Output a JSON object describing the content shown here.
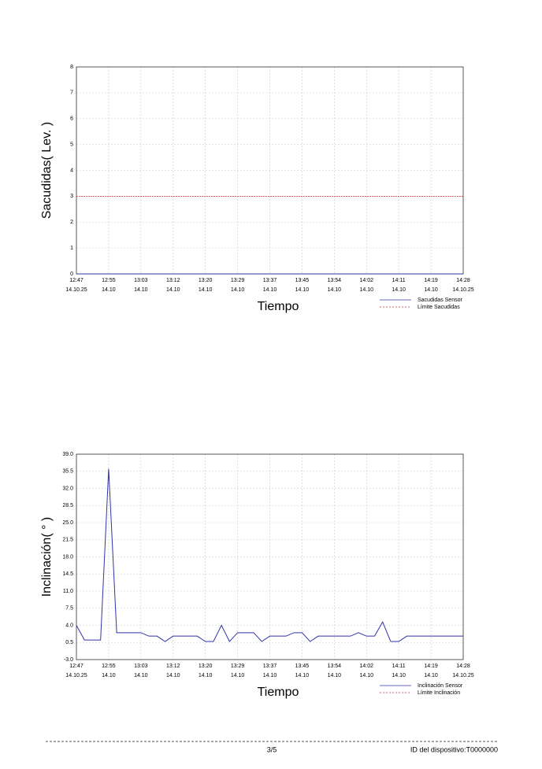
{
  "chart_data": [
    {
      "type": "line",
      "y_label": "Sacudidas( Lev. )",
      "x_label": "Tiempo",
      "ylim": [
        0,
        8
      ],
      "yticks": [
        0,
        1,
        2,
        3,
        4,
        5,
        6,
        7,
        8
      ],
      "xlim": [
        0,
        48
      ],
      "xticks": [
        {
          "value": 0,
          "label": [
            "12:47",
            "14.10.25"
          ]
        },
        {
          "value": 4,
          "label": [
            "12:55",
            "14.10"
          ]
        },
        {
          "value": 8,
          "label": [
            "13:03",
            "14.10"
          ]
        },
        {
          "value": 12,
          "label": [
            "13:12",
            "14.10"
          ]
        },
        {
          "value": 16,
          "label": [
            "13:20",
            "14.10"
          ]
        },
        {
          "value": 20,
          "label": [
            "13:29",
            "14.10"
          ]
        },
        {
          "value": 24,
          "label": [
            "13:37",
            "14.10"
          ]
        },
        {
          "value": 28,
          "label": [
            "13:45",
            "14.10"
          ]
        },
        {
          "value": 32,
          "label": [
            "13:54",
            "14.10"
          ]
        },
        {
          "value": 36,
          "label": [
            "14:02",
            "14.10"
          ]
        },
        {
          "value": 40,
          "label": [
            "14:11",
            "14.10"
          ]
        },
        {
          "value": 44,
          "label": [
            "14:19",
            "14.10"
          ]
        },
        {
          "value": 48,
          "label": [
            "14:28",
            "14.10.25"
          ]
        }
      ],
      "grid": true,
      "series": [
        {
          "name": "Sacudidas Sensor",
          "color": "#3333aa",
          "values": [
            0,
            0,
            0,
            0,
            0,
            0,
            0,
            0,
            0,
            0,
            0,
            0,
            0,
            0,
            0,
            0,
            0,
            0,
            0,
            0,
            0,
            0,
            0,
            0,
            0,
            0,
            0,
            0,
            0,
            0,
            0,
            0,
            0,
            0,
            0,
            0,
            0,
            0,
            0,
            0,
            0,
            0,
            0,
            0,
            0,
            0,
            0,
            0,
            0
          ]
        },
        {
          "name": "Límite Sacudidas",
          "color": "#cc3333",
          "dashed": true,
          "limit": 3
        }
      ]
    },
    {
      "type": "line",
      "y_label": "Inclinación( ° )",
      "x_label": "Tiempo",
      "ylim": [
        -3,
        39
      ],
      "yticks": [
        {
          "value": -3,
          "label": "-3.0"
        },
        {
          "value": 0.5,
          "label": "0.5"
        },
        {
          "value": 4,
          "label": "4.0"
        },
        {
          "value": 7.5,
          "label": "7.5"
        },
        {
          "value": 11,
          "label": "11.0"
        },
        {
          "value": 14.5,
          "label": "14.5"
        },
        {
          "value": 18,
          "label": "18.0"
        },
        {
          "value": 21.5,
          "label": "21.5"
        },
        {
          "value": 25,
          "label": "25.0"
        },
        {
          "value": 28.5,
          "label": "28.5"
        },
        {
          "value": 32,
          "label": "32.0"
        },
        {
          "value": 35.5,
          "label": "35.5"
        },
        {
          "value": 39,
          "label": "39.0"
        }
      ],
      "xlim": [
        0,
        48
      ],
      "xticks": [
        {
          "value": 0,
          "label": [
            "12:47",
            "14.10.25"
          ]
        },
        {
          "value": 4,
          "label": [
            "12:55",
            "14.10"
          ]
        },
        {
          "value": 8,
          "label": [
            "13:03",
            "14.10"
          ]
        },
        {
          "value": 12,
          "label": [
            "13:12",
            "14.10"
          ]
        },
        {
          "value": 16,
          "label": [
            "13:20",
            "14.10"
          ]
        },
        {
          "value": 20,
          "label": [
            "13:29",
            "14.10"
          ]
        },
        {
          "value": 24,
          "label": [
            "13:37",
            "14.10"
          ]
        },
        {
          "value": 28,
          "label": [
            "13:45",
            "14.10"
          ]
        },
        {
          "value": 32,
          "label": [
            "13:54",
            "14.10"
          ]
        },
        {
          "value": 36,
          "label": [
            "14:02",
            "14.10"
          ]
        },
        {
          "value": 40,
          "label": [
            "14:11",
            "14.10"
          ]
        },
        {
          "value": 44,
          "label": [
            "14:19",
            "14.10"
          ]
        },
        {
          "value": 48,
          "label": [
            "14:28",
            "14.10.25"
          ]
        }
      ],
      "grid": true,
      "series": [
        {
          "name": "Inclinación Sensor",
          "color": "#3333aa",
          "values": [
            4,
            1,
            1,
            1,
            36,
            2.5,
            2.5,
            2.5,
            2.5,
            1.8,
            1.8,
            0.7,
            1.8,
            1.8,
            1.8,
            1.8,
            0.7,
            0.7,
            4,
            0.7,
            2.5,
            2.5,
            2.5,
            0.7,
            1.8,
            1.8,
            1.8,
            2.5,
            2.5,
            0.7,
            1.8,
            1.8,
            1.8,
            1.8,
            1.8,
            2.5,
            1.8,
            1.8,
            4.7,
            0.7,
            0.7,
            1.8,
            1.8,
            1.8,
            1.8,
            1.8,
            1.8,
            1.8,
            1.8
          ]
        },
        {
          "name": "Límite Inclinación",
          "color": "#cc3333",
          "dashed": true
        }
      ]
    }
  ],
  "footer": {
    "page": "3/5",
    "device_id": "ID del dispositivo:T0000000"
  }
}
